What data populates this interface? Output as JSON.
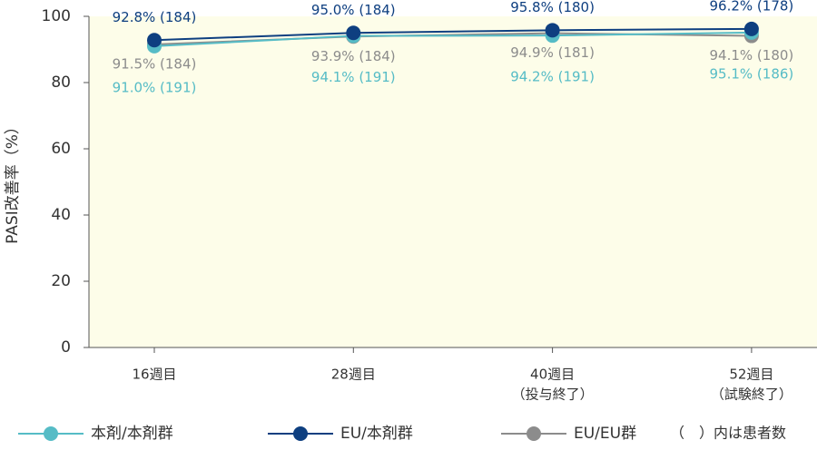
{
  "chart_data": {
    "type": "line",
    "y_label": "PASI改善率（%）",
    "categories": [
      "16週目",
      "28週目",
      "40週目",
      "52週目"
    ],
    "category_notes": [
      null,
      null,
      "（投与終了）",
      "（試験終了）"
    ],
    "ylim": [
      0,
      100
    ],
    "yticks": [
      0,
      20,
      40,
      60,
      80,
      100
    ],
    "plot_background": "#fdfde9",
    "series": [
      {
        "name": "本剤/本剤群",
        "color": "#56bcc6",
        "values": [
          91.0,
          94.1,
          94.2,
          95.1
        ],
        "value_labels": [
          "91.0% (191)",
          "94.1% (191)",
          "94.2% (191)",
          "95.1% (186)"
        ]
      },
      {
        "name": "EU/本剤群",
        "color": "#0e3f80",
        "values": [
          92.8,
          95.0,
          95.8,
          96.2
        ],
        "value_labels": [
          "92.8% (184)",
          "95.0% (184)",
          "95.8% (180)",
          "96.2% (178)"
        ]
      },
      {
        "name": "EU/EU群",
        "color": "#8c8c8c",
        "values": [
          91.5,
          93.9,
          94.9,
          94.1
        ],
        "value_labels": [
          "91.5% (184)",
          "93.9% (184)",
          "94.9% (181)",
          "94.1% (180)"
        ]
      }
    ],
    "legend_note": "（　）内は患者数"
  }
}
